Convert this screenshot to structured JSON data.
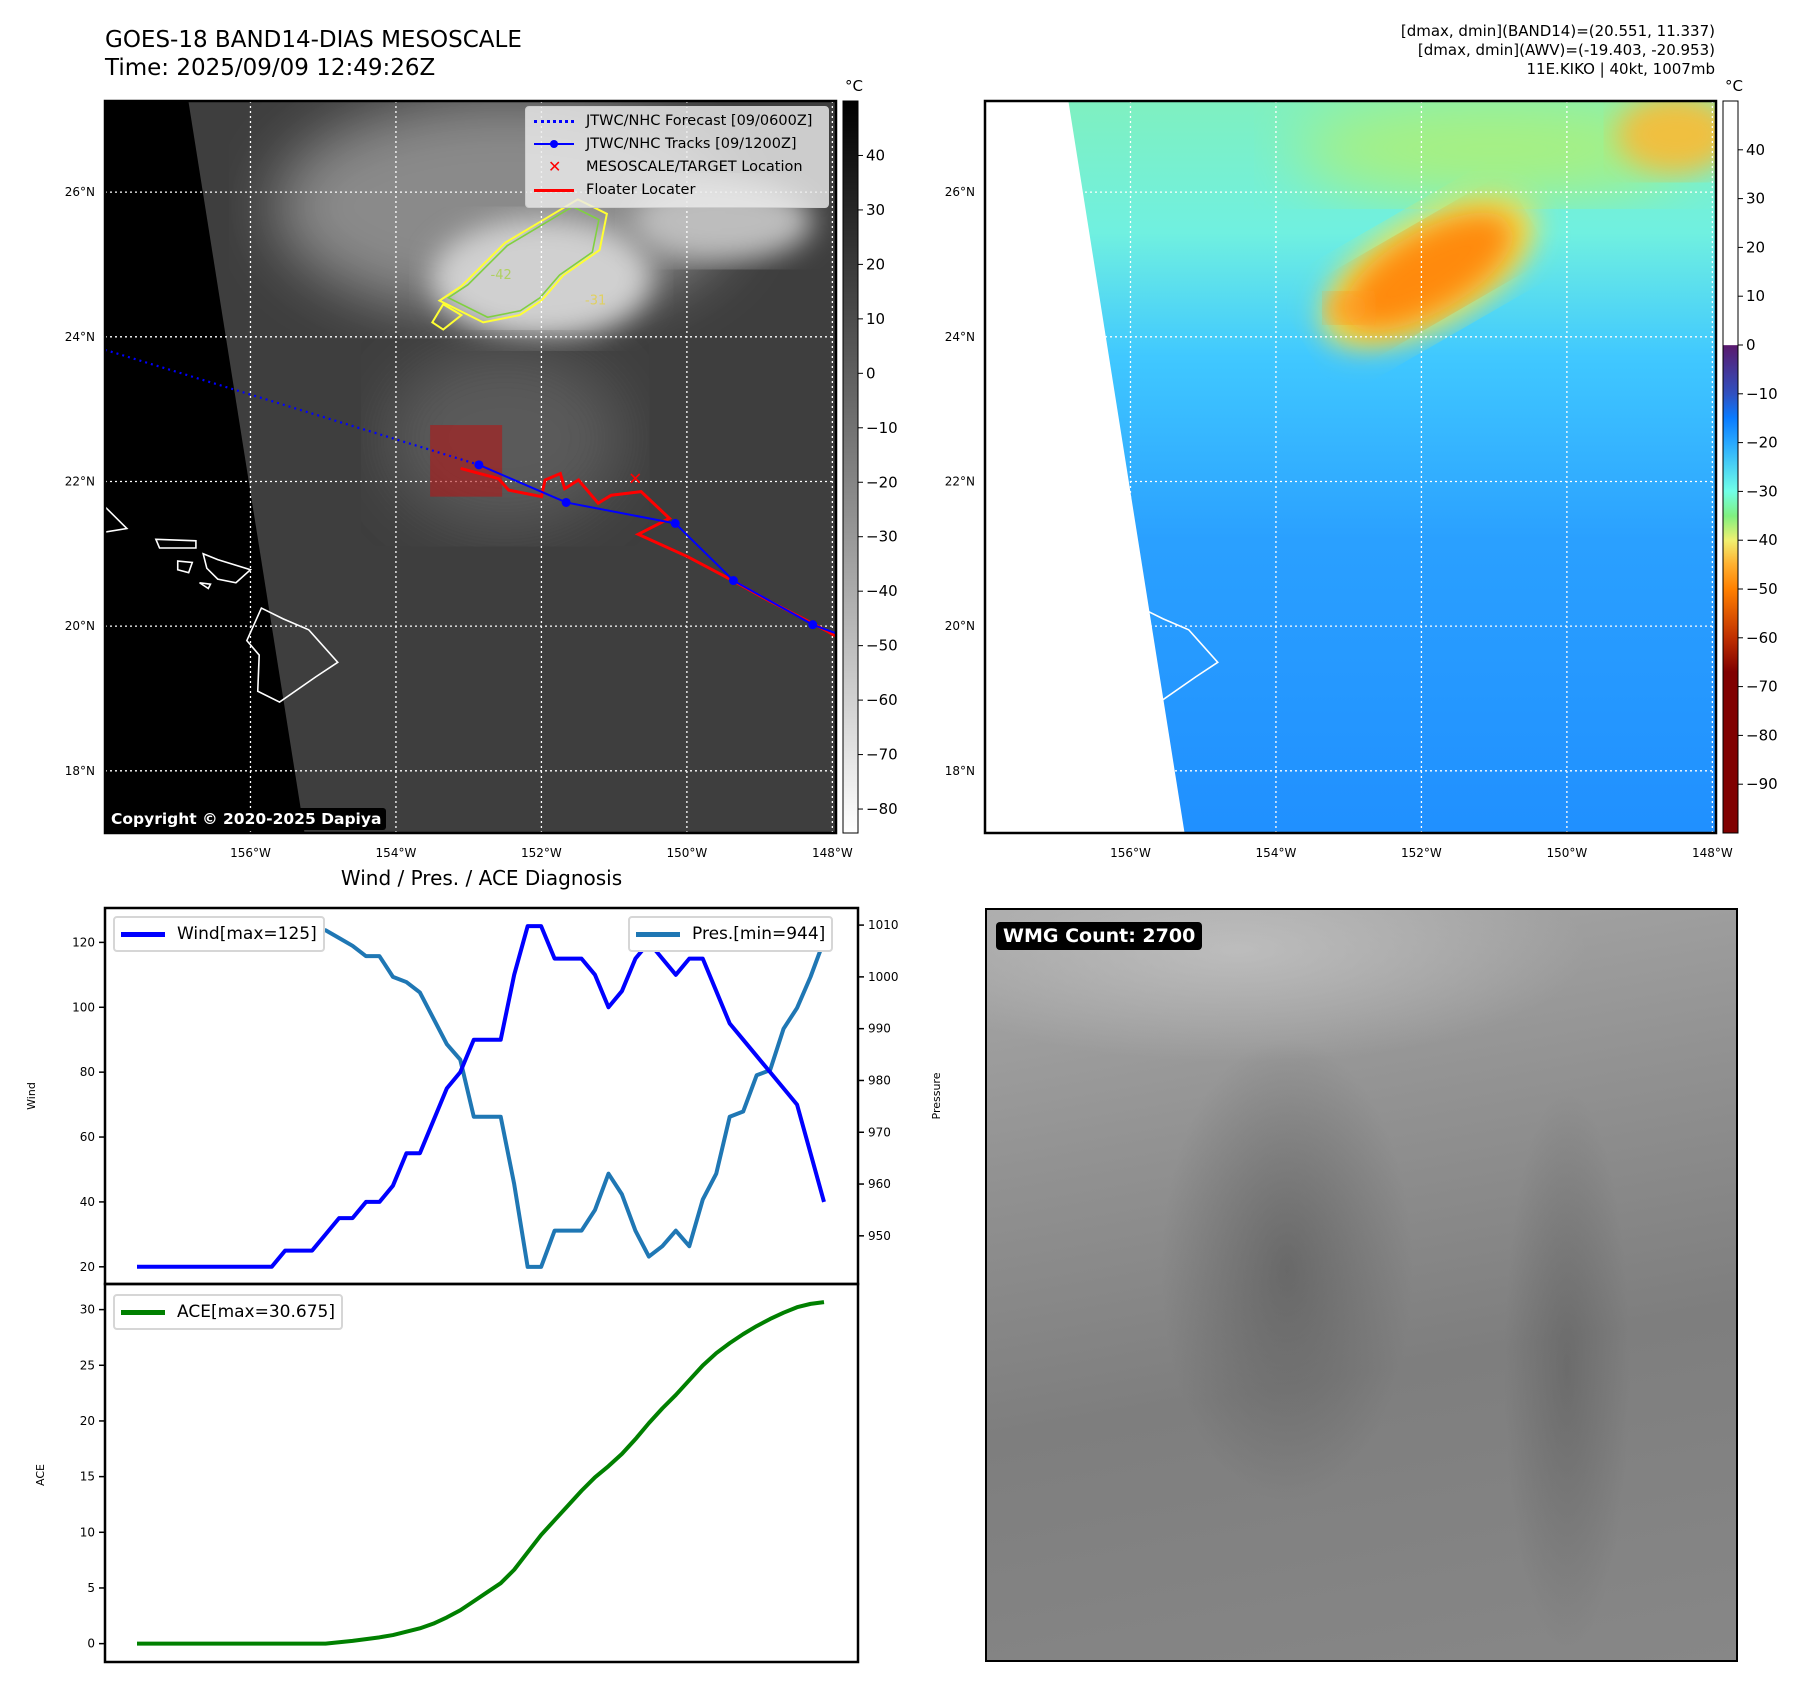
{
  "header": {
    "title": "GOES-18 BAND14-DIAS MESOSCALE",
    "time": "Time: 2025/09/09 12:49:26Z",
    "info_lines": [
      "[dmax, dmin](BAND14)=(20.551, 11.337)",
      "[dmax, dmin](AWV)=(-19.403, -20.953)",
      "11E.KIKO | 40kt, 1007mb"
    ]
  },
  "map": {
    "lon_range": [
      -158,
      -147.95
    ],
    "lat_range": [
      17.14,
      27.26
    ],
    "lon_ticks": [
      -156,
      -154,
      -152,
      -150,
      -148
    ],
    "lon_tick_labels": [
      "156°W",
      "154°W",
      "152°W",
      "150°W",
      "148°W"
    ],
    "lat_ticks": [
      18,
      20,
      22,
      24,
      26
    ],
    "lat_tick_labels": [
      "18°N",
      "20°N",
      "22°N",
      "24°N",
      "26°N"
    ],
    "legend": [
      "JTWC/NHC Forecast [09/0600Z]",
      "JTWC/NHC Tracks [09/1200Z]",
      "MESOSCALE/TARGET Location",
      "Floater Locater"
    ],
    "copyright": "Copyright © 2020-2025 Dapiya",
    "forecast_track": [
      [
        -158,
        23.82
      ],
      [
        -152.86,
        22.23
      ]
    ],
    "best_track": [
      [
        -152.86,
        22.23
      ],
      [
        -151.66,
        21.71
      ],
      [
        -150.16,
        21.42
      ],
      [
        -149.36,
        20.63
      ],
      [
        -148.27,
        20.02
      ],
      [
        -147.95,
        19.9
      ]
    ],
    "floater_track": [
      [
        -153.11,
        22.18
      ],
      [
        -152.59,
        22.04
      ],
      [
        -152.45,
        21.88
      ],
      [
        -152.0,
        21.79
      ],
      [
        -151.95,
        22.02
      ],
      [
        -151.74,
        22.11
      ],
      [
        -151.68,
        21.9
      ],
      [
        -151.49,
        22.02
      ],
      [
        -151.22,
        21.7
      ],
      [
        -151.04,
        21.81
      ],
      [
        -150.63,
        21.86
      ],
      [
        -150.24,
        21.49
      ],
      [
        -150.67,
        21.27
      ],
      [
        -149.99,
        20.96
      ],
      [
        -149.39,
        20.64
      ],
      [
        -148.89,
        20.36
      ],
      [
        -148.07,
        19.93
      ],
      [
        -147.95,
        19.86
      ]
    ],
    "target_location": [
      -150.71,
      22.04
    ],
    "mesoscale_box": {
      "lon": [
        -153.53,
        -152.54
      ],
      "lat": [
        21.79,
        22.78
      ]
    },
    "contour_labels": [
      "-42",
      "-31"
    ],
    "colorbar_left": {
      "unit": "°C",
      "range": [
        -84.4,
        50
      ],
      "ticks": [
        40,
        30,
        20,
        10,
        0,
        -10,
        -20,
        -30,
        -40,
        -50,
        -60,
        -70,
        -80
      ]
    },
    "colorbar_right": {
      "unit": "°C",
      "range": [
        -100,
        50
      ],
      "ticks": [
        40,
        30,
        20,
        10,
        0,
        -10,
        -20,
        -30,
        -40,
        -50,
        -60,
        -70,
        -80,
        -90
      ]
    },
    "colors": {
      "forecast": "#0000ff",
      "track": "#0000ff",
      "floater": "#ff0000",
      "target": "#ff0000"
    }
  },
  "diagnosis": {
    "title": "Wind / Pres. / ACE Diagnosis"
  },
  "wmg": {
    "label": "WMG Count: 2700"
  },
  "chart_data": [
    {
      "type": "line",
      "title": "Wind / Pres. / ACE Diagnosis",
      "ylabel": "Wind",
      "ylabel_right": "Pressure",
      "ylim": [
        14.7,
        130.6
      ],
      "ylim_right": [
        940.7,
        1013.3
      ],
      "yticks": [
        20,
        40,
        60,
        80,
        100,
        120
      ],
      "yticks_right": [
        950,
        960,
        970,
        980,
        990,
        1000,
        1010
      ],
      "series": [
        {
          "name": "Wind[max=125]",
          "color": "#0000ff",
          "axis": "left",
          "legend": "top-left",
          "values": [
            20,
            20,
            20,
            20,
            20,
            20,
            20,
            20,
            20,
            20,
            20,
            25,
            25,
            25,
            30,
            35,
            35,
            40,
            40,
            45,
            55,
            55,
            65,
            75,
            80,
            90,
            90,
            90,
            110,
            125,
            125,
            115,
            115,
            115,
            110,
            100,
            105,
            115,
            120,
            115,
            110,
            115,
            115,
            105,
            95,
            90,
            85,
            80,
            75,
            70,
            55,
            40
          ]
        },
        {
          "name": "Pres.[min=944]",
          "color": "#1f77b4",
          "axis": "right",
          "legend": "top-right",
          "values": [
            1010,
            1010,
            1010,
            1010,
            1010,
            1010,
            1010,
            1010,
            1010,
            1010,
            1010,
            1010,
            1009,
            1009,
            1009,
            1007.5,
            1006,
            1004,
            1004,
            1000,
            999,
            997,
            992,
            987,
            984,
            973,
            973,
            973,
            960,
            944,
            944,
            951,
            951,
            951,
            955,
            962,
            958,
            951,
            946,
            948,
            951,
            948,
            957,
            962,
            973,
            974,
            981,
            982,
            990,
            994,
            1000,
            1007
          ]
        }
      ]
    },
    {
      "type": "line",
      "ylabel": "ACE",
      "ylim": [
        -1.65,
        32.3
      ],
      "yticks": [
        0,
        5,
        10,
        15,
        20,
        25,
        30
      ],
      "series": [
        {
          "name": "ACE[max=30.675]",
          "color": "#008000",
          "legend": "top-left",
          "values": [
            0,
            0,
            0,
            0,
            0,
            0,
            0,
            0,
            0,
            0,
            0,
            0,
            0,
            0,
            0,
            0.1225,
            0.245,
            0.405,
            0.565,
            0.7675,
            1.07,
            1.3725,
            1.795,
            2.3575,
            2.9975,
            3.8075,
            4.6175,
            5.4275,
            6.6375,
            8.2,
            9.7625,
            11.085,
            12.4075,
            13.73,
            14.94,
            15.94,
            17.0425,
            18.365,
            19.805,
            21.1275,
            22.3375,
            23.66,
            24.9825,
            26.085,
            26.9875,
            27.7975,
            28.52,
            29.16,
            29.7225,
            30.2125,
            30.515,
            30.675
          ]
        }
      ]
    }
  ]
}
